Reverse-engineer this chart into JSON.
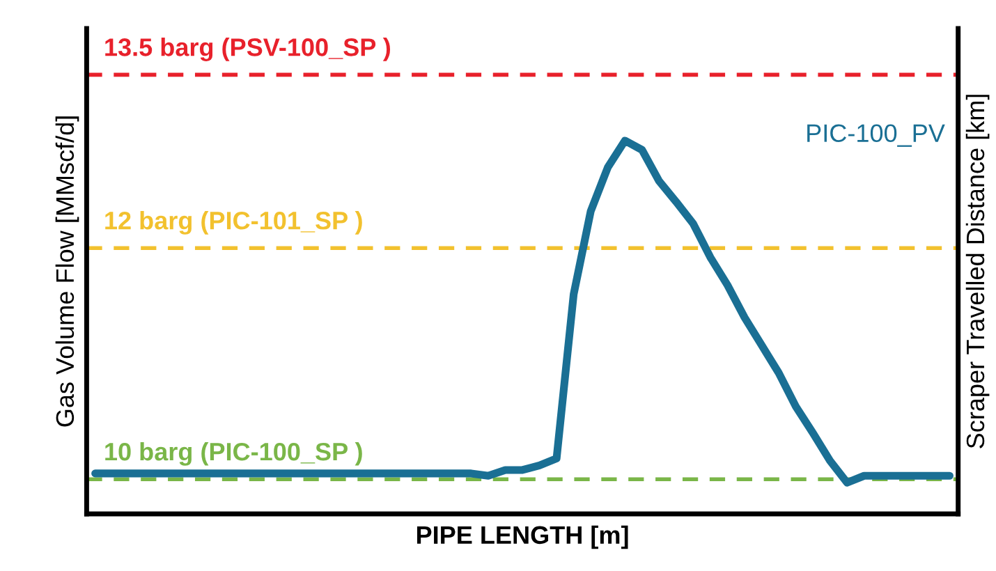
{
  "chart_data": {
    "type": "line",
    "xlabel": "PIPE LENGTH [m]",
    "ylabel": "Gas Volume Flow [MMscf/d]",
    "y2label": "Scraper Travelled Distance [km]",
    "categories": [
      null,
      null,
      null,
      null,
      null,
      null,
      null,
      null,
      null,
      null,
      null,
      null,
      null,
      null,
      null,
      null,
      null,
      null,
      null,
      null,
      null,
      null,
      null,
      null,
      null,
      null,
      null,
      null,
      null,
      null,
      null,
      null,
      null,
      null,
      null,
      null,
      null,
      null,
      null,
      null,
      null,
      null,
      null,
      null,
      null,
      null,
      null,
      null,
      null,
      null,
      null
    ],
    "series": [
      {
        "name": "PIC-100_PV",
        "color": "#1a6f94",
        "values": [
          10.05,
          10.05,
          10.05,
          10.05,
          10.05,
          10.05,
          10.05,
          10.05,
          10.05,
          10.05,
          10.05,
          10.05,
          10.05,
          10.05,
          10.05,
          10.05,
          10.05,
          10.05,
          10.05,
          10.05,
          10.05,
          10.05,
          10.05,
          10.03,
          10.08,
          10.08,
          10.12,
          10.18,
          11.6,
          12.32,
          12.7,
          12.93,
          12.85,
          12.58,
          12.4,
          12.21,
          11.92,
          11.68,
          11.4,
          11.16,
          10.92,
          10.63,
          10.4,
          10.16,
          9.97,
          10.03,
          10.03,
          10.03,
          10.03,
          10.03,
          10.03
        ]
      }
    ],
    "ylim": [
      9.7,
      13.9
    ],
    "ref_lines": [
      {
        "axis": "y",
        "value": 13.5,
        "label": "13.5 barg (PSV-100_SP )",
        "color": "#e8212b",
        "line_style": "dashed"
      },
      {
        "axis": "y",
        "value": 12,
        "label": "12 barg (PIC-101_SP )",
        "color": "#f2c12e",
        "line_style": "dashed"
      },
      {
        "axis": "y",
        "value": 10,
        "label": "10 barg (PIC-100_SP )",
        "color": "#7ab648",
        "line_style": "dashed"
      }
    ],
    "legend": false
  }
}
